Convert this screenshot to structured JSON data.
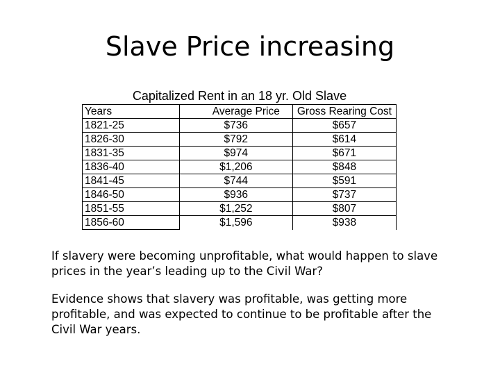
{
  "slide": {
    "title": "Slave Price increasing",
    "table": {
      "caption": "Capitalized Rent in an 18 yr. Old Slave",
      "columns": [
        "Years",
        "Average Price",
        "Gross Rearing Cost"
      ],
      "rows": [
        [
          "1821-25",
          "$736",
          "$657"
        ],
        [
          "1826-30",
          "$792",
          "$614"
        ],
        [
          "1831-35",
          "$974",
          "$671"
        ],
        [
          "1836-40",
          "$1,206",
          "$848"
        ],
        [
          "1841-45",
          "$744",
          "$591"
        ],
        [
          "1846-50",
          "$936",
          "$737"
        ],
        [
          "1851-55",
          "$1,252",
          "$807"
        ],
        [
          "1856-60",
          "$1,596",
          "$938"
        ]
      ]
    },
    "paragraphs": [
      "If slavery were becoming unprofitable, what would happen to slave prices in the year’s leading up to the Civil War?",
      "Evidence shows that slavery was profitable, was getting more profitable, and was expected to continue to be profitable after the Civil War years."
    ]
  }
}
